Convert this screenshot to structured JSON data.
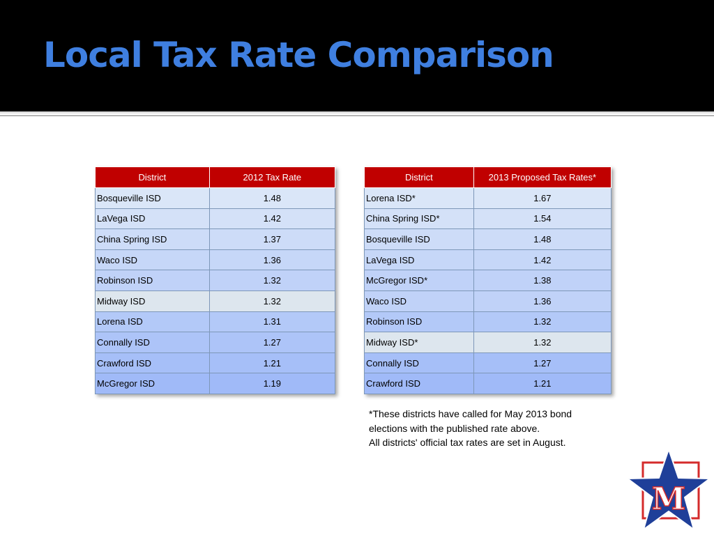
{
  "slide": {
    "title": "Local Tax Rate Comparison"
  },
  "table_2012": {
    "headers": [
      "District",
      "2012 Tax Rate"
    ],
    "rows": [
      [
        "Bosqueville ISD",
        "1.48"
      ],
      [
        "LaVega ISD",
        "1.42"
      ],
      [
        "China Spring ISD",
        "1.37"
      ],
      [
        "Waco ISD",
        "1.36"
      ],
      [
        "Robinson ISD",
        "1.32"
      ],
      [
        "Midway ISD",
        "1.32"
      ],
      [
        "Lorena ISD",
        "1.31"
      ],
      [
        "Connally ISD",
        "1.27"
      ],
      [
        "Crawford ISD",
        "1.21"
      ],
      [
        "McGregor ISD",
        "1.19"
      ]
    ]
  },
  "table_2013": {
    "headers": [
      "District",
      "2013 Proposed Tax Rates*"
    ],
    "rows": [
      [
        "Lorena ISD*",
        "1.67"
      ],
      [
        "China Spring ISD*",
        "1.54"
      ],
      [
        "Bosqueville ISD",
        "1.48"
      ],
      [
        "LaVega ISD",
        "1.42"
      ],
      [
        "McGregor ISD*",
        "1.38"
      ],
      [
        "Waco ISD",
        "1.36"
      ],
      [
        "Robinson ISD",
        "1.32"
      ],
      [
        "Midway ISD*",
        "1.32"
      ],
      [
        "Connally ISD",
        "1.27"
      ],
      [
        "Crawford ISD",
        "1.21"
      ]
    ]
  },
  "footnote": {
    "line1": "*These districts have called for May 2013 bond",
    "line2": "elections with the published rate above.",
    "line3": "All districts' official tax rates are set in August."
  },
  "logo": {
    "letter": "M",
    "icon": "star-m-logo-icon"
  },
  "colors": {
    "title": "#3f7fe0",
    "header_bg": "#c00000",
    "title_bar_bg": "#000000",
    "logo_star": "#1f3f99",
    "logo_square": "#d42b2b"
  }
}
